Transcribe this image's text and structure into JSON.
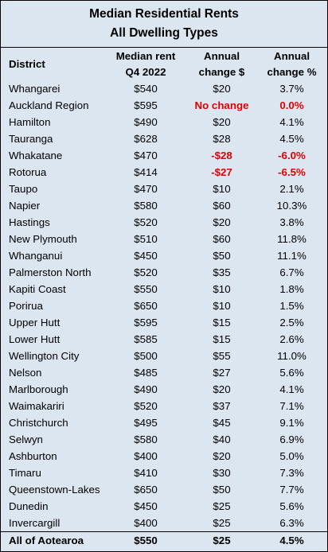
{
  "title": {
    "line1": "Median Residential Rents",
    "line2": "All Dwelling Types"
  },
  "columns": {
    "district": "District",
    "median_line1": "Median rent",
    "median_line2": "Q4 2022",
    "change_d_line1": "Annual",
    "change_d_line2": "change $",
    "change_p_line1": "Annual",
    "change_p_line2": "change %"
  },
  "rows": [
    {
      "district": "Whangarei",
      "median": "$540",
      "change_d": "$20",
      "change_p": "3.7%"
    },
    {
      "district": "Auckland Region",
      "median": "$595",
      "change_d": "No change",
      "change_p": "0.0%"
    },
    {
      "district": "Hamilton",
      "median": "$490",
      "change_d": "$20",
      "change_p": "4.1%"
    },
    {
      "district": "Tauranga",
      "median": "$628",
      "change_d": "$28",
      "change_p": "4.5%"
    },
    {
      "district": "Whakatane",
      "median": "$470",
      "change_d": "-$28",
      "change_p": "-6.0%"
    },
    {
      "district": "Rotorua",
      "median": "$414",
      "change_d": "-$27",
      "change_p": "-6.5%"
    },
    {
      "district": "Taupo",
      "median": "$470",
      "change_d": "$10",
      "change_p": "2.1%"
    },
    {
      "district": "Napier",
      "median": "$580",
      "change_d": "$60",
      "change_p": "10.3%"
    },
    {
      "district": "Hastings",
      "median": "$520",
      "change_d": "$20",
      "change_p": "3.8%"
    },
    {
      "district": "New Plymouth",
      "median": "$510",
      "change_d": "$60",
      "change_p": "11.8%"
    },
    {
      "district": "Whanganui",
      "median": "$450",
      "change_d": "$50",
      "change_p": "11.1%"
    },
    {
      "district": "Palmerston North",
      "median": "$520",
      "change_d": "$35",
      "change_p": "6.7%"
    },
    {
      "district": "Kapiti Coast",
      "median": "$550",
      "change_d": "$10",
      "change_p": "1.8%"
    },
    {
      "district": "Porirua",
      "median": "$650",
      "change_d": "$10",
      "change_p": "1.5%"
    },
    {
      "district": "Upper Hutt",
      "median": "$595",
      "change_d": "$15",
      "change_p": "2.5%"
    },
    {
      "district": "Lower Hutt",
      "median": "$585",
      "change_d": "$15",
      "change_p": "2.6%"
    },
    {
      "district": "Wellington City",
      "median": "$500",
      "change_d": "$55",
      "change_p": "11.0%"
    },
    {
      "district": "Nelson",
      "median": "$485",
      "change_d": "$27",
      "change_p": "5.6%"
    },
    {
      "district": "Marlborough",
      "median": "$490",
      "change_d": "$20",
      "change_p": "4.1%"
    },
    {
      "district": "Waimakariri",
      "median": "$520",
      "change_d": "$37",
      "change_p": "7.1%"
    },
    {
      "district": "Christchurch",
      "median": "$495",
      "change_d": "$45",
      "change_p": "9.1%"
    },
    {
      "district": "Selwyn",
      "median": "$580",
      "change_d": "$40",
      "change_p": "6.9%"
    },
    {
      "district": "Ashburton",
      "median": "$400",
      "change_d": "$20",
      "change_p": "5.0%"
    },
    {
      "district": "Timaru",
      "median": "$410",
      "change_d": "$30",
      "change_p": "7.3%"
    },
    {
      "district": "Queenstown-Lakes",
      "median": "$650",
      "change_d": "$50",
      "change_p": "7.7%"
    },
    {
      "district": "Dunedin",
      "median": "$450",
      "change_d": "$25",
      "change_p": "5.6%"
    },
    {
      "district": "Invercargill",
      "median": "$400",
      "change_d": "$25",
      "change_p": "6.3%"
    }
  ],
  "total": {
    "district": "All of Aotearoa",
    "median": "$550",
    "change_d": "$25",
    "change_p": "4.5%"
  },
  "colors": {
    "background": "#dce6f1",
    "highlight_red": "#e00000"
  }
}
